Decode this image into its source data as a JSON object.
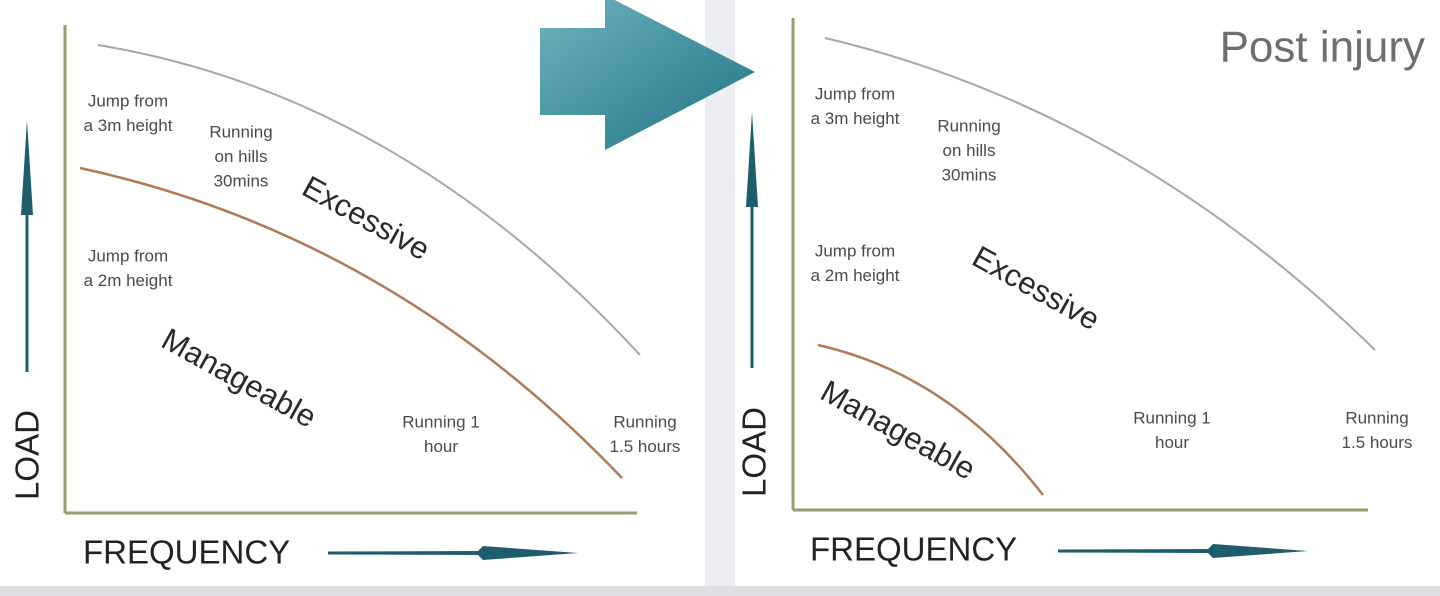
{
  "panels": [
    {
      "y_axis_label": "LOAD",
      "x_axis_label": "FREQUENCY",
      "zone_labels": {
        "upper": "Excessive",
        "lower": "Manageable"
      },
      "activities": [
        [
          "Jump from",
          "a 3m height"
        ],
        [
          "Running",
          "on hills",
          "30mins"
        ],
        [
          "Jump from",
          "a 2m height"
        ],
        [
          "Running 1",
          "hour"
        ],
        [
          "Running",
          "1.5 hours"
        ]
      ]
    },
    {
      "title": "Post injury",
      "y_axis_label": "LOAD",
      "x_axis_label": "FREQUENCY",
      "zone_labels": {
        "upper": "Excessive",
        "lower": "Manageable"
      },
      "activities": [
        [
          "Jump from",
          "a 3m height"
        ],
        [
          "Running",
          "on hills",
          "30mins"
        ],
        [
          "Jump from",
          "a 2m height"
        ],
        [
          "Running 1",
          "hour"
        ],
        [
          "Running",
          "1.5 hours"
        ]
      ]
    }
  ]
}
